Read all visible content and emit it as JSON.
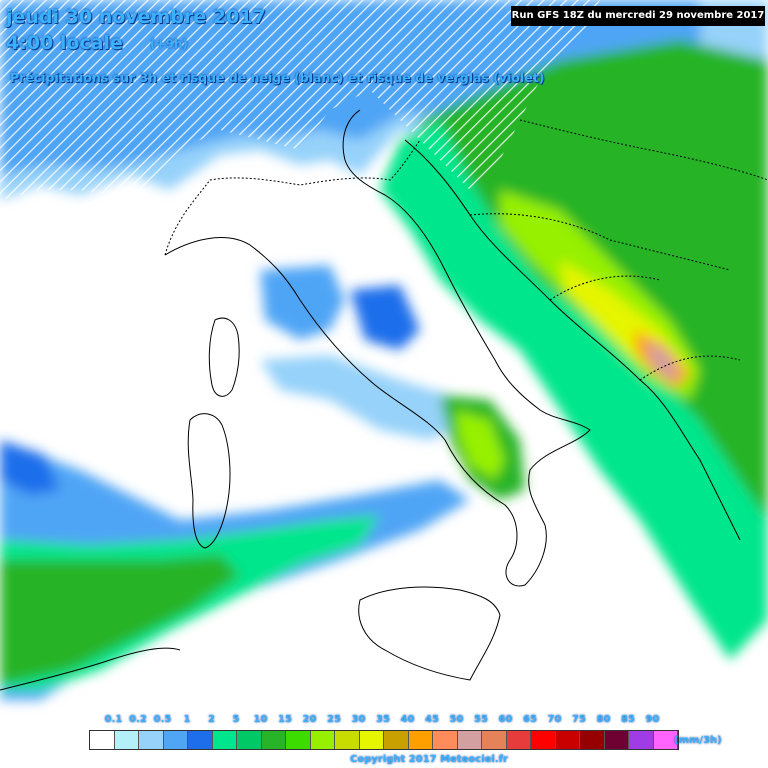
{
  "header": {
    "title_date": "jeudi 30 novembre 2017",
    "title_time": "4:00 locale",
    "title_offset": "(+9h)",
    "subtitle": "Précipitations sur 3h et risque de neige (blanc) et risque de verglas (violet)",
    "run_info": "Run GFS 18Z du mercredi 29 novembre 2017"
  },
  "legend": {
    "unit": "(mm/3h)",
    "labels": [
      "0.1",
      "0.2",
      "0.5",
      "1",
      "2",
      "5",
      "10",
      "15",
      "20",
      "25",
      "30",
      "35",
      "40",
      "45",
      "50",
      "55",
      "60",
      "65",
      "70",
      "75",
      "80",
      "85",
      "90"
    ],
    "colors": [
      "#ffffff",
      "#b4f0fa",
      "#96d2fa",
      "#50a5f5",
      "#1e6eeb",
      "#00e68c",
      "#00c864",
      "#28b428",
      "#3cdc00",
      "#96f000",
      "#c8dc00",
      "#e6f500",
      "#c8a000",
      "#ffa000",
      "#ff8c5a",
      "#d2a0a0",
      "#e6825a",
      "#e63c3c",
      "#ff0000",
      "#c80000",
      "#960000",
      "#6e0032",
      "#a03ce6",
      "#ff64ff"
    ]
  },
  "copyright": "Copyright 2017 Meteociel.fr",
  "map": {
    "region": "Italie / Méditerranée centrale",
    "colors": {
      "sea": "#ffffff",
      "coast": "#000000",
      "light_blue": "#96d2fa",
      "blue": "#50a5f5",
      "deep_blue": "#1e6eeb",
      "teal": "#00e68c",
      "green": "#28b428",
      "lime": "#96f000",
      "yellow": "#e6f500",
      "orange": "#ffa000",
      "pink": "#d2a0a0",
      "snow_hatch": "#ffffff"
    }
  }
}
